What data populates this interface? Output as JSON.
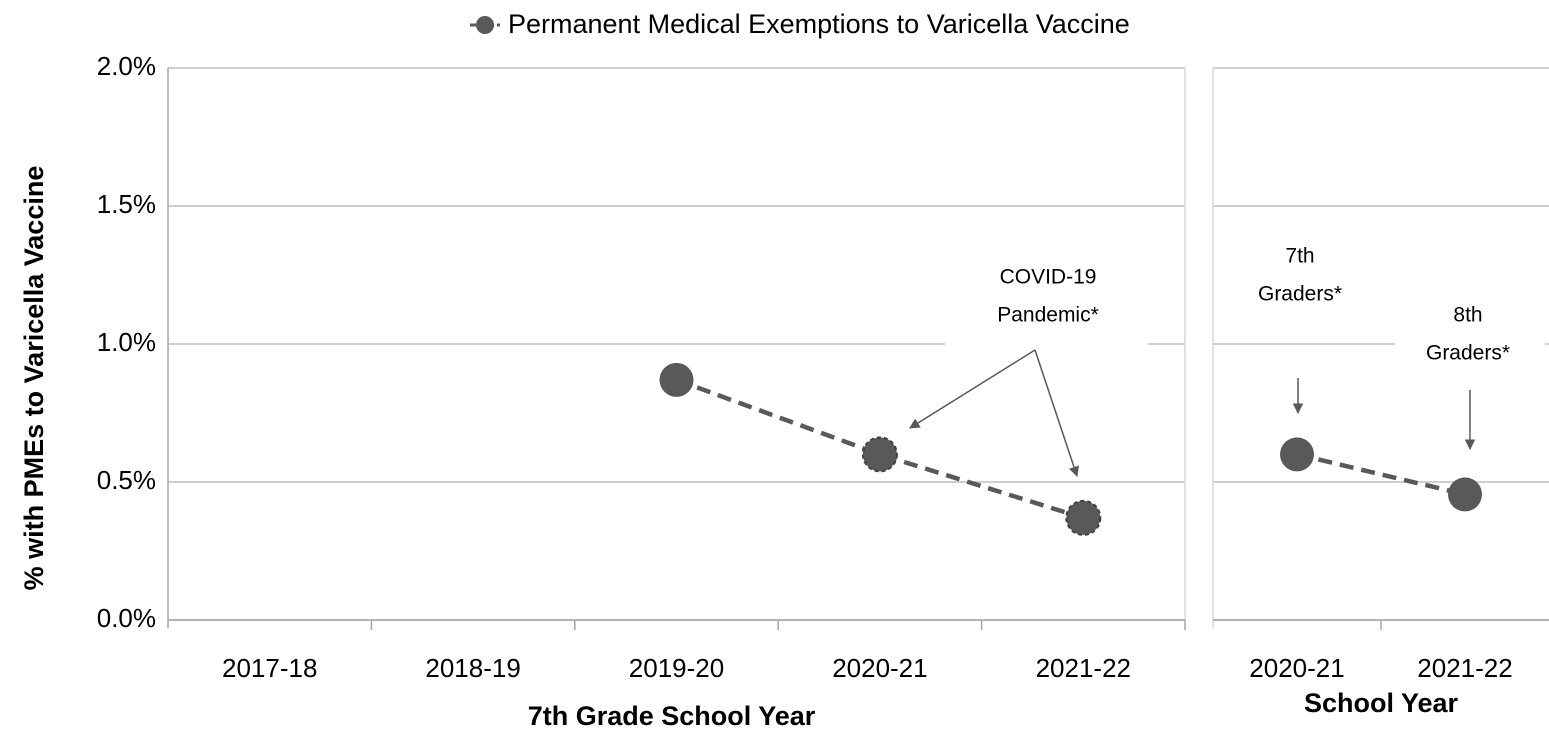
{
  "chart_data": [
    {
      "type": "line",
      "legend": "Permanent Medical Exemptions to Varicella Vaccine",
      "y_label": "% with PMEs to Varicella Vaccine",
      "x_label": "7th Grade School Year",
      "categories": [
        "2017-18",
        "2018-19",
        "2019-20",
        "2020-21",
        "2021-22"
      ],
      "values": [
        null,
        null,
        0.87,
        0.6,
        0.37
      ],
      "color": "#595959",
      "ylim": [
        0,
        2
      ],
      "yticks": [
        {
          "value": 0,
          "label": "0.0%"
        },
        {
          "value": 0.5,
          "label": "0.5%"
        },
        {
          "value": 1,
          "label": "1.0%"
        },
        {
          "value": 1.5,
          "label": "1.5%"
        },
        {
          "value": 2,
          "label": "2.0%"
        }
      ],
      "grid": true,
      "annotations": [
        [
          "COVID-19",
          "Pandemic*"
        ]
      ]
    },
    {
      "type": "line",
      "x_label": "School Year",
      "categories": [
        "2020-21",
        "2021-22"
      ],
      "values": [
        0.6,
        0.455
      ],
      "color": "#595959",
      "ylim": [
        0,
        2
      ],
      "yticks": [
        0,
        0.5,
        1,
        1.5,
        2
      ],
      "grid": true,
      "annotations": [
        [
          "7th",
          "Graders*"
        ],
        [
          "8th",
          "Graders*"
        ]
      ]
    }
  ]
}
